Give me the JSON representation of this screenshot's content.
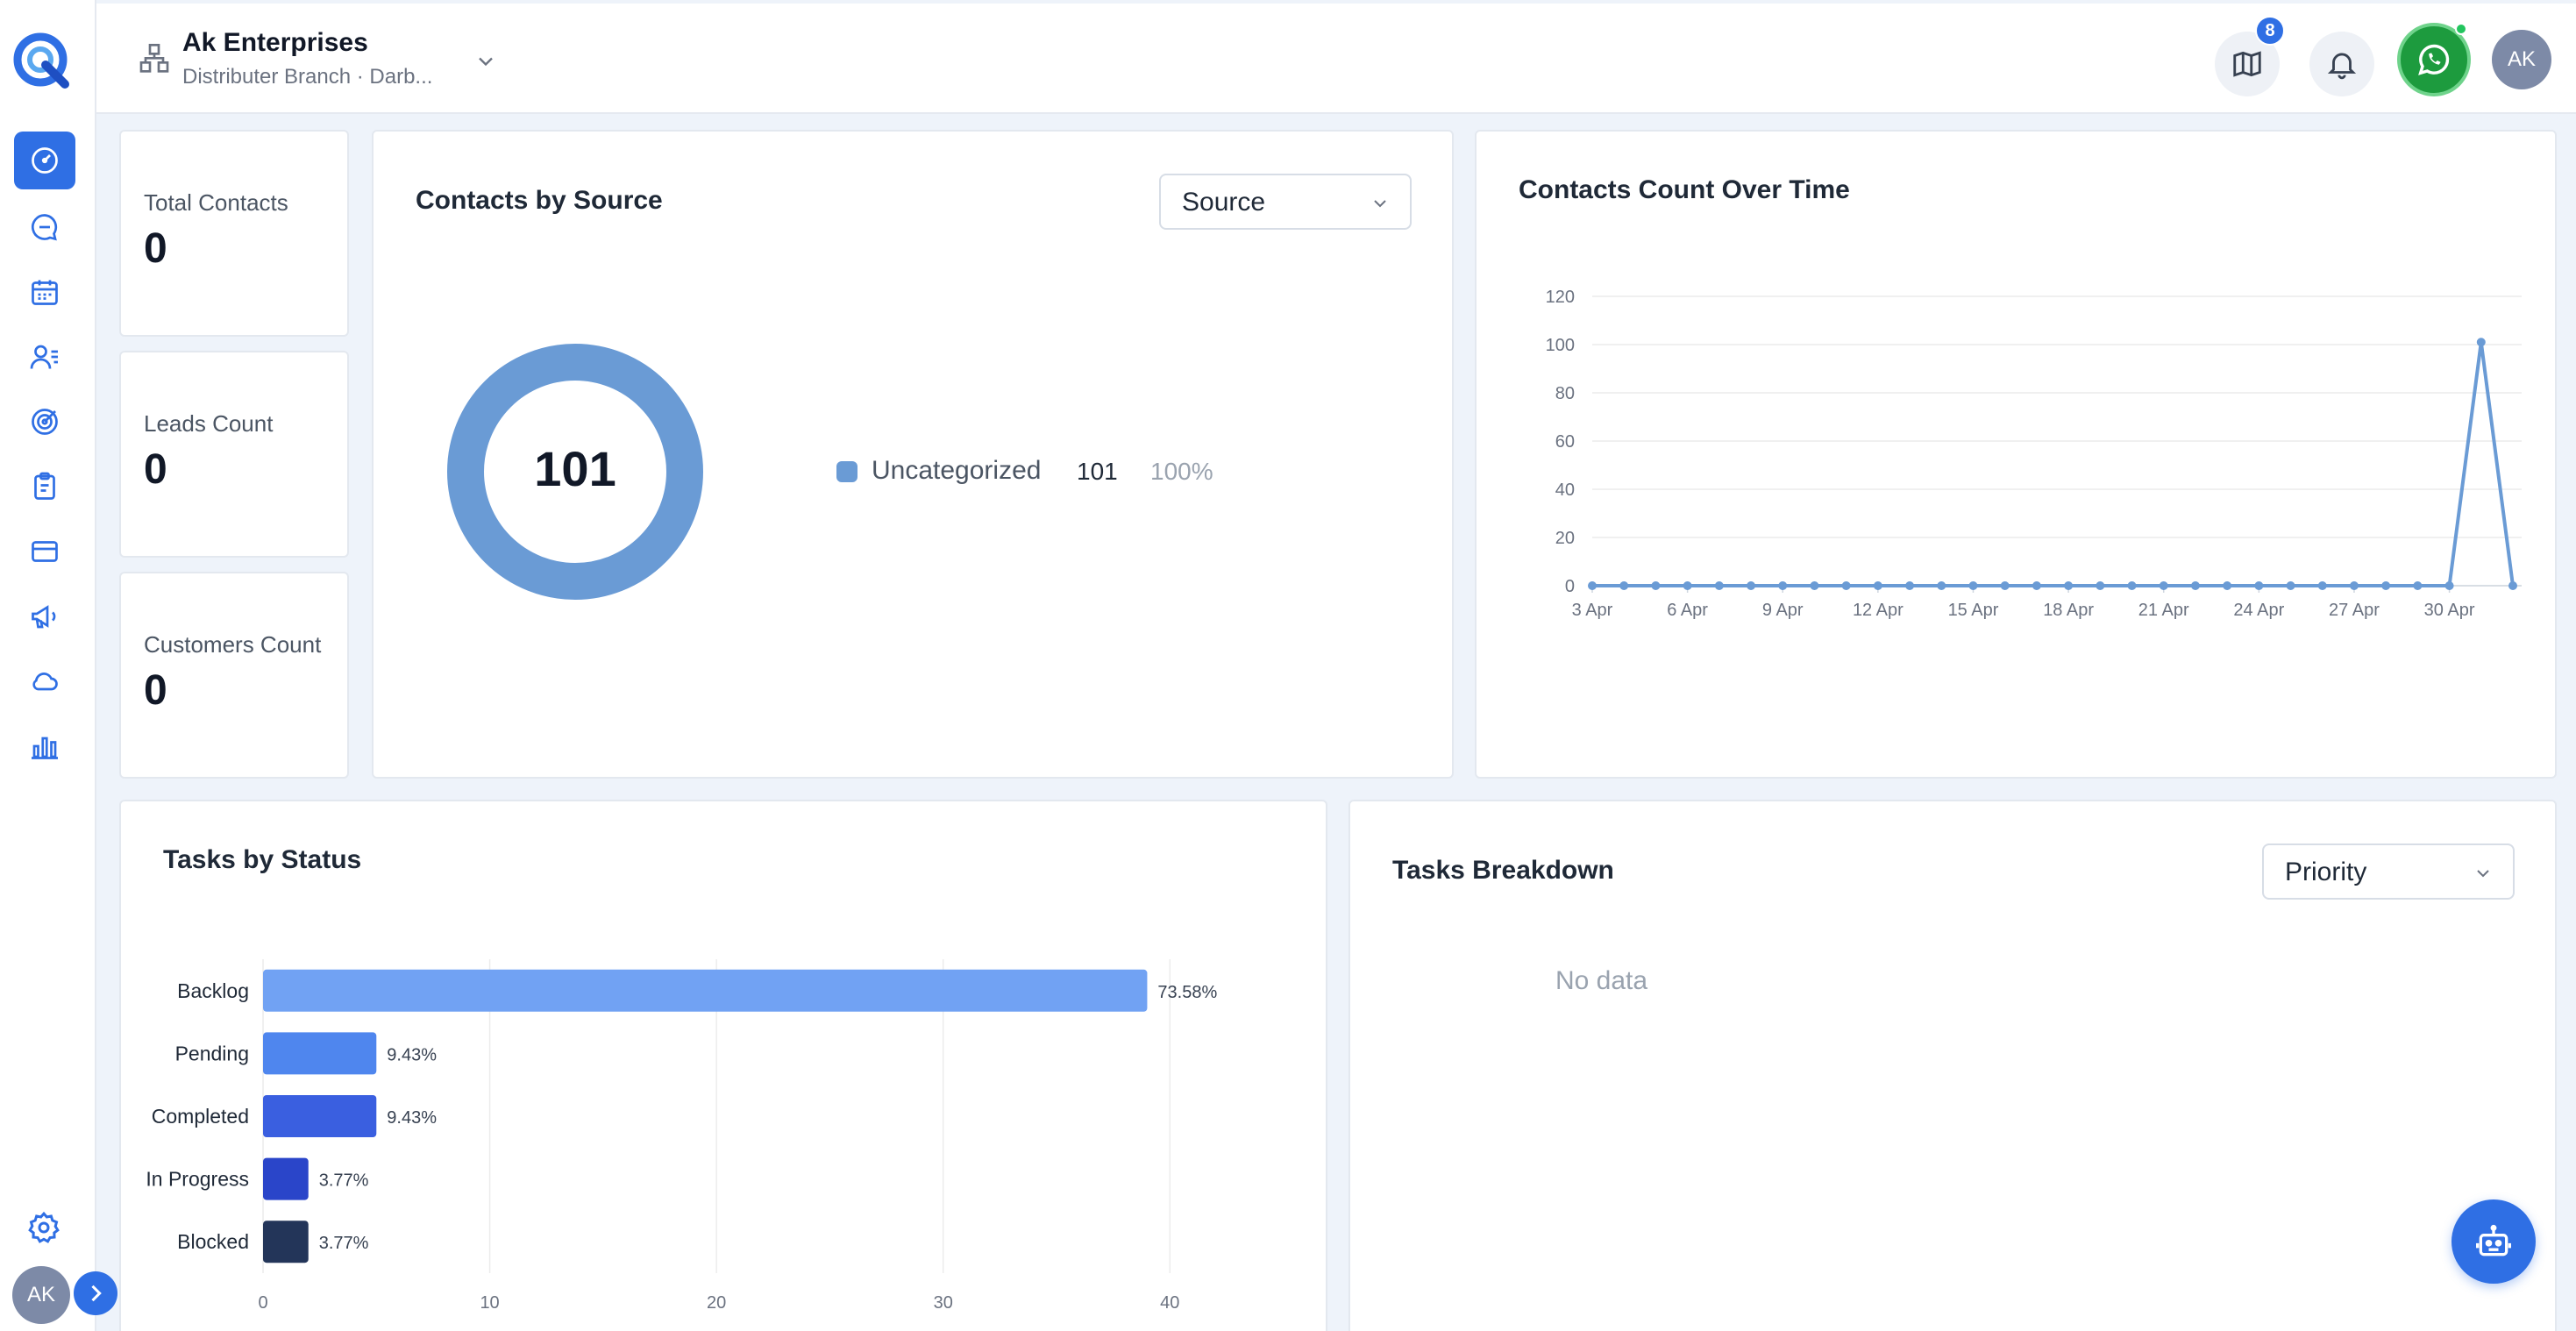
{
  "header": {
    "org_name": "Ak Enterprises",
    "org_subtitle": "Distributer Branch · Darb...",
    "notification_count": "8",
    "avatar_initials": "AK"
  },
  "sidebar": {
    "items": [
      {
        "icon": "dashboard-icon",
        "active": true
      },
      {
        "icon": "chat-icon"
      },
      {
        "icon": "calendar-icon"
      },
      {
        "icon": "contacts-icon"
      },
      {
        "icon": "target-icon"
      },
      {
        "icon": "clipboard-icon"
      },
      {
        "icon": "card-icon"
      },
      {
        "icon": "megaphone-icon"
      },
      {
        "icon": "cloud-icon"
      },
      {
        "icon": "bar-chart-icon"
      }
    ],
    "avatar_initials": "AK"
  },
  "stats": [
    {
      "label": "Total Contacts",
      "value": "0"
    },
    {
      "label": "Leads Count",
      "value": "0"
    },
    {
      "label": "Customers Count",
      "value": "0"
    }
  ],
  "contacts_by_source": {
    "title": "Contacts by Source",
    "select_value": "Source",
    "total": "101",
    "legend": [
      {
        "name": "Uncategorized",
        "count": "101",
        "percent": "100%"
      }
    ]
  },
  "contacts_over_time": {
    "title": "Contacts Count Over Time"
  },
  "tasks_by_status": {
    "title": "Tasks by Status"
  },
  "tasks_breakdown": {
    "title": "Tasks Breakdown",
    "select_value": "Priority",
    "empty_text": "No data"
  },
  "chart_data": [
    {
      "type": "pie",
      "title": "Contacts by Source",
      "categories": [
        "Uncategorized"
      ],
      "values": [
        101
      ],
      "center_label": "101",
      "colors": [
        "#6a9bd5"
      ]
    },
    {
      "type": "line",
      "title": "Contacts Count Over Time",
      "x": [
        "3 Apr",
        "4 Apr",
        "5 Apr",
        "6 Apr",
        "7 Apr",
        "8 Apr",
        "9 Apr",
        "10 Apr",
        "11 Apr",
        "12 Apr",
        "13 Apr",
        "14 Apr",
        "15 Apr",
        "16 Apr",
        "17 Apr",
        "18 Apr",
        "19 Apr",
        "20 Apr",
        "21 Apr",
        "22 Apr",
        "23 Apr",
        "24 Apr",
        "25 Apr",
        "26 Apr",
        "27 Apr",
        "28 Apr",
        "29 Apr",
        "30 Apr",
        "1 May",
        "2 May"
      ],
      "x_tick_labels": [
        "3 Apr",
        "6 Apr",
        "9 Apr",
        "12 Apr",
        "15 Apr",
        "18 Apr",
        "21 Apr",
        "24 Apr",
        "27 Apr",
        "30 Apr"
      ],
      "values": [
        0,
        0,
        0,
        0,
        0,
        0,
        0,
        0,
        0,
        0,
        0,
        0,
        0,
        0,
        0,
        0,
        0,
        0,
        0,
        0,
        0,
        0,
        0,
        0,
        0,
        0,
        0,
        0,
        101,
        0
      ],
      "y_ticks": [
        0,
        20,
        40,
        60,
        80,
        100,
        120
      ],
      "ylim": [
        0,
        120
      ],
      "grid": true,
      "color": "#6a9bd5"
    },
    {
      "type": "bar",
      "orientation": "horizontal",
      "title": "Tasks by Status",
      "categories": [
        "Backlog",
        "Pending",
        "Completed",
        "In Progress",
        "Blocked"
      ],
      "values": [
        39,
        5,
        5,
        2,
        2
      ],
      "data_labels": [
        "73.58%",
        "9.43%",
        "9.43%",
        "3.77%",
        "3.77%"
      ],
      "x_ticks": [
        0,
        10,
        20,
        30,
        40
      ],
      "xlim": [
        0,
        42
      ],
      "colors": [
        "#71a2f3",
        "#4f86ee",
        "#3a5fe0",
        "#2a45c9",
        "#233559"
      ]
    }
  ]
}
